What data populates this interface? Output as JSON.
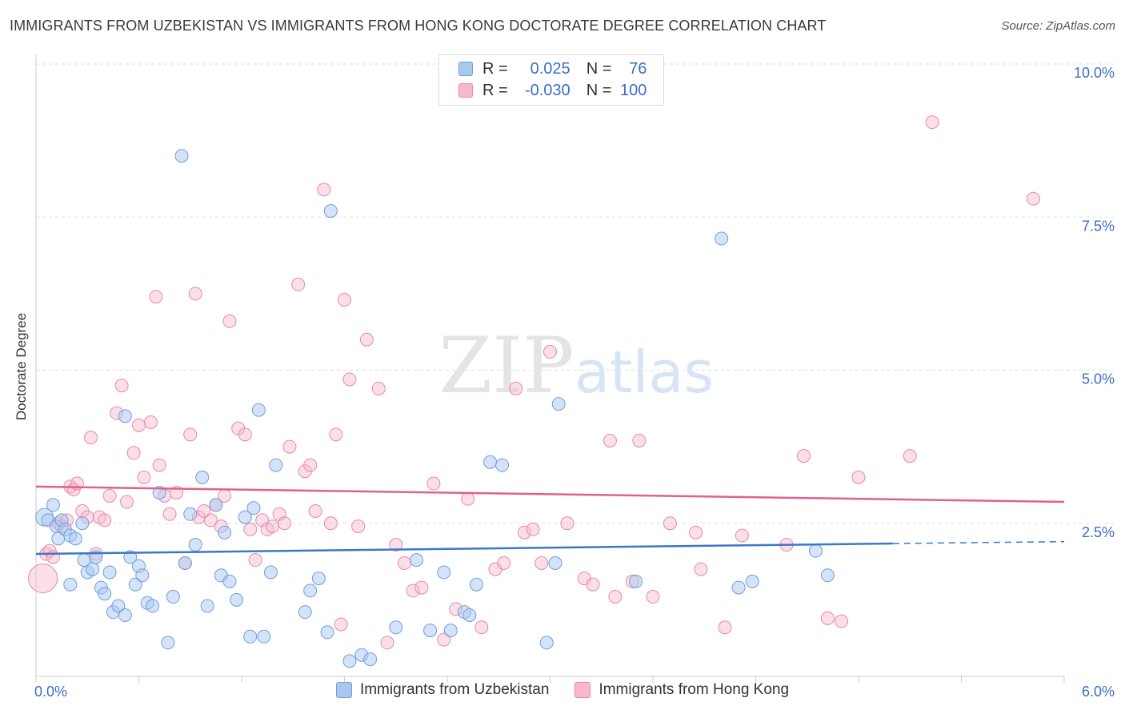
{
  "header": {
    "title": "IMMIGRANTS FROM UZBEKISTAN VS IMMIGRANTS FROM HONG KONG DOCTORATE DEGREE CORRELATION CHART",
    "source": "Source: ZipAtlas.com"
  },
  "watermark": {
    "zip": "ZIP",
    "atlas": "atlas"
  },
  "legend_top": {
    "rows": [
      {
        "r_label": "R =",
        "r_value": "0.025",
        "n_label": "N =",
        "n_value": "76"
      },
      {
        "r_label": "R =",
        "r_value": "-0.030",
        "n_label": "N =",
        "n_value": "100"
      }
    ]
  },
  "colors": {
    "uzbekistan_fill": "#a9c8f0",
    "uzbekistan_stroke": "#6e9fdc",
    "uzbekistan_line": "#3c78c8",
    "hongkong_fill": "#f7b8cb",
    "hongkong_stroke": "#e888a8",
    "hongkong_line": "#e0608f",
    "tick_label": "#3b6fc4",
    "grid": "#dddddd"
  },
  "chart_data": {
    "type": "scatter",
    "title": "IMMIGRANTS FROM UZBEKISTAN VS IMMIGRANTS FROM HONG KONG DOCTORATE DEGREE CORRELATION CHART",
    "xlabel": "",
    "ylabel": "Doctorate Degree",
    "xlim": [
      0,
      6.0
    ],
    "ylim": [
      0,
      10.0
    ],
    "x_tick_labels": [
      "0.0%",
      "6.0%"
    ],
    "y_ticks": [
      2.5,
      5.0,
      7.5,
      10.0
    ],
    "y_tick_labels": [
      "2.5%",
      "5.0%",
      "7.5%",
      "10.0%"
    ],
    "grid": true,
    "legend_position": "bottom",
    "series": [
      {
        "name": "Immigrants from Uzbekistan",
        "R": 0.025,
        "N": 76,
        "trend": {
          "x": [
            0.0,
            5.0
          ],
          "y": [
            2.0,
            2.17
          ],
          "dashed_to_x": 6.0,
          "dashed_to_y": 2.2
        },
        "points": [
          [
            0.05,
            2.6
          ],
          [
            0.07,
            2.55
          ],
          [
            0.1,
            2.8
          ],
          [
            0.12,
            2.45
          ],
          [
            0.13,
            2.25
          ],
          [
            0.15,
            2.55
          ],
          [
            0.17,
            2.4
          ],
          [
            0.2,
            2.3
          ],
          [
            0.23,
            2.25
          ],
          [
            0.27,
            2.5
          ],
          [
            0.28,
            1.9
          ],
          [
            0.3,
            1.7
          ],
          [
            0.33,
            1.75
          ],
          [
            0.35,
            1.95
          ],
          [
            0.38,
            1.45
          ],
          [
            0.4,
            1.35
          ],
          [
            0.43,
            1.7
          ],
          [
            0.45,
            1.05
          ],
          [
            0.48,
            1.15
          ],
          [
            0.52,
            1.0
          ],
          [
            0.55,
            1.95
          ],
          [
            0.58,
            1.5
          ],
          [
            0.6,
            1.8
          ],
          [
            0.62,
            1.65
          ],
          [
            0.65,
            1.2
          ],
          [
            0.68,
            1.15
          ],
          [
            0.72,
            3.0
          ],
          [
            0.77,
            0.55
          ],
          [
            0.8,
            1.3
          ],
          [
            0.85,
            8.5
          ],
          [
            0.87,
            1.85
          ],
          [
            0.9,
            2.65
          ],
          [
            0.93,
            2.15
          ],
          [
            0.97,
            3.25
          ],
          [
            1.0,
            1.15
          ],
          [
            1.05,
            2.8
          ],
          [
            1.08,
            1.65
          ],
          [
            1.1,
            2.35
          ],
          [
            1.13,
            1.55
          ],
          [
            1.17,
            1.25
          ],
          [
            1.22,
            2.6
          ],
          [
            1.25,
            0.65
          ],
          [
            1.27,
            2.75
          ],
          [
            1.3,
            4.35
          ],
          [
            1.33,
            0.65
          ],
          [
            1.37,
            1.7
          ],
          [
            1.4,
            3.45
          ],
          [
            1.57,
            1.05
          ],
          [
            1.6,
            1.4
          ],
          [
            1.65,
            1.6
          ],
          [
            1.7,
            0.72
          ],
          [
            1.72,
            7.6
          ],
          [
            1.83,
            0.25
          ],
          [
            1.9,
            0.35
          ],
          [
            1.95,
            0.28
          ],
          [
            2.1,
            0.8
          ],
          [
            2.22,
            1.9
          ],
          [
            2.3,
            0.75
          ],
          [
            2.38,
            1.7
          ],
          [
            2.42,
            0.75
          ],
          [
            2.5,
            1.05
          ],
          [
            2.53,
            1.0
          ],
          [
            2.57,
            1.5
          ],
          [
            2.65,
            3.5
          ],
          [
            2.72,
            3.45
          ],
          [
            2.98,
            0.55
          ],
          [
            3.03,
            1.85
          ],
          [
            3.05,
            4.45
          ],
          [
            4.0,
            7.15
          ],
          [
            4.1,
            1.45
          ],
          [
            4.18,
            1.55
          ],
          [
            4.55,
            2.05
          ],
          [
            4.62,
            1.65
          ],
          [
            3.5,
            1.55
          ],
          [
            0.52,
            4.25
          ],
          [
            0.2,
            1.5
          ]
        ]
      },
      {
        "name": "Immigrants from Hong Kong",
        "R": -0.03,
        "N": 100,
        "trend": {
          "x": [
            0.0,
            6.0
          ],
          "y": [
            3.1,
            2.85
          ]
        },
        "points": [
          [
            0.04,
            1.6
          ],
          [
            0.06,
            2.0
          ],
          [
            0.08,
            2.05
          ],
          [
            0.1,
            1.95
          ],
          [
            0.13,
            2.5
          ],
          [
            0.15,
            2.45
          ],
          [
            0.18,
            2.55
          ],
          [
            0.2,
            3.1
          ],
          [
            0.22,
            3.05
          ],
          [
            0.24,
            3.15
          ],
          [
            0.27,
            2.7
          ],
          [
            0.3,
            2.6
          ],
          [
            0.32,
            3.9
          ],
          [
            0.35,
            2.0
          ],
          [
            0.37,
            2.6
          ],
          [
            0.4,
            2.55
          ],
          [
            0.43,
            2.95
          ],
          [
            0.47,
            4.3
          ],
          [
            0.5,
            4.75
          ],
          [
            0.53,
            2.85
          ],
          [
            0.57,
            3.65
          ],
          [
            0.6,
            4.1
          ],
          [
            0.63,
            3.25
          ],
          [
            0.67,
            4.15
          ],
          [
            0.7,
            6.2
          ],
          [
            0.72,
            3.45
          ],
          [
            0.75,
            2.95
          ],
          [
            0.78,
            2.65
          ],
          [
            0.82,
            3.0
          ],
          [
            0.87,
            1.85
          ],
          [
            0.9,
            3.95
          ],
          [
            0.93,
            6.25
          ],
          [
            0.95,
            2.6
          ],
          [
            0.98,
            2.7
          ],
          [
            1.02,
            2.55
          ],
          [
            1.05,
            2.8
          ],
          [
            1.08,
            2.45
          ],
          [
            1.1,
            2.95
          ],
          [
            1.13,
            5.8
          ],
          [
            1.18,
            4.05
          ],
          [
            1.22,
            3.95
          ],
          [
            1.25,
            2.4
          ],
          [
            1.28,
            1.9
          ],
          [
            1.32,
            2.55
          ],
          [
            1.35,
            2.4
          ],
          [
            1.38,
            2.45
          ],
          [
            1.42,
            2.65
          ],
          [
            1.45,
            2.5
          ],
          [
            1.48,
            3.75
          ],
          [
            1.53,
            6.4
          ],
          [
            1.57,
            3.35
          ],
          [
            1.6,
            3.45
          ],
          [
            1.63,
            2.7
          ],
          [
            1.68,
            7.95
          ],
          [
            1.72,
            2.5
          ],
          [
            1.75,
            3.95
          ],
          [
            1.8,
            6.15
          ],
          [
            1.83,
            4.85
          ],
          [
            1.88,
            2.45
          ],
          [
            1.93,
            5.5
          ],
          [
            2.0,
            4.7
          ],
          [
            2.05,
            0.55
          ],
          [
            2.1,
            2.15
          ],
          [
            2.15,
            1.85
          ],
          [
            2.2,
            1.4
          ],
          [
            2.25,
            1.45
          ],
          [
            2.32,
            3.15
          ],
          [
            2.38,
            0.6
          ],
          [
            2.45,
            1.1
          ],
          [
            2.52,
            2.9
          ],
          [
            2.6,
            0.8
          ],
          [
            2.68,
            1.75
          ],
          [
            2.73,
            1.85
          ],
          [
            2.8,
            4.7
          ],
          [
            2.85,
            2.35
          ],
          [
            2.9,
            2.4
          ],
          [
            2.95,
            1.85
          ],
          [
            3.0,
            5.3
          ],
          [
            3.1,
            2.5
          ],
          [
            3.2,
            1.6
          ],
          [
            3.25,
            1.5
          ],
          [
            3.35,
            3.85
          ],
          [
            3.38,
            1.3
          ],
          [
            3.48,
            1.55
          ],
          [
            3.52,
            3.85
          ],
          [
            3.6,
            1.3
          ],
          [
            3.7,
            2.5
          ],
          [
            3.85,
            2.35
          ],
          [
            3.88,
            1.75
          ],
          [
            4.02,
            0.8
          ],
          [
            4.12,
            2.3
          ],
          [
            4.38,
            2.15
          ],
          [
            4.48,
            3.6
          ],
          [
            4.62,
            0.95
          ],
          [
            4.7,
            0.9
          ],
          [
            4.8,
            3.25
          ],
          [
            5.1,
            3.6
          ],
          [
            5.23,
            9.05
          ],
          [
            5.82,
            7.8
          ],
          [
            1.78,
            0.85
          ]
        ]
      }
    ]
  },
  "bottom_legend": [
    {
      "label": "Immigrants from Uzbekistan"
    },
    {
      "label": "Immigrants from Hong Kong"
    }
  ]
}
